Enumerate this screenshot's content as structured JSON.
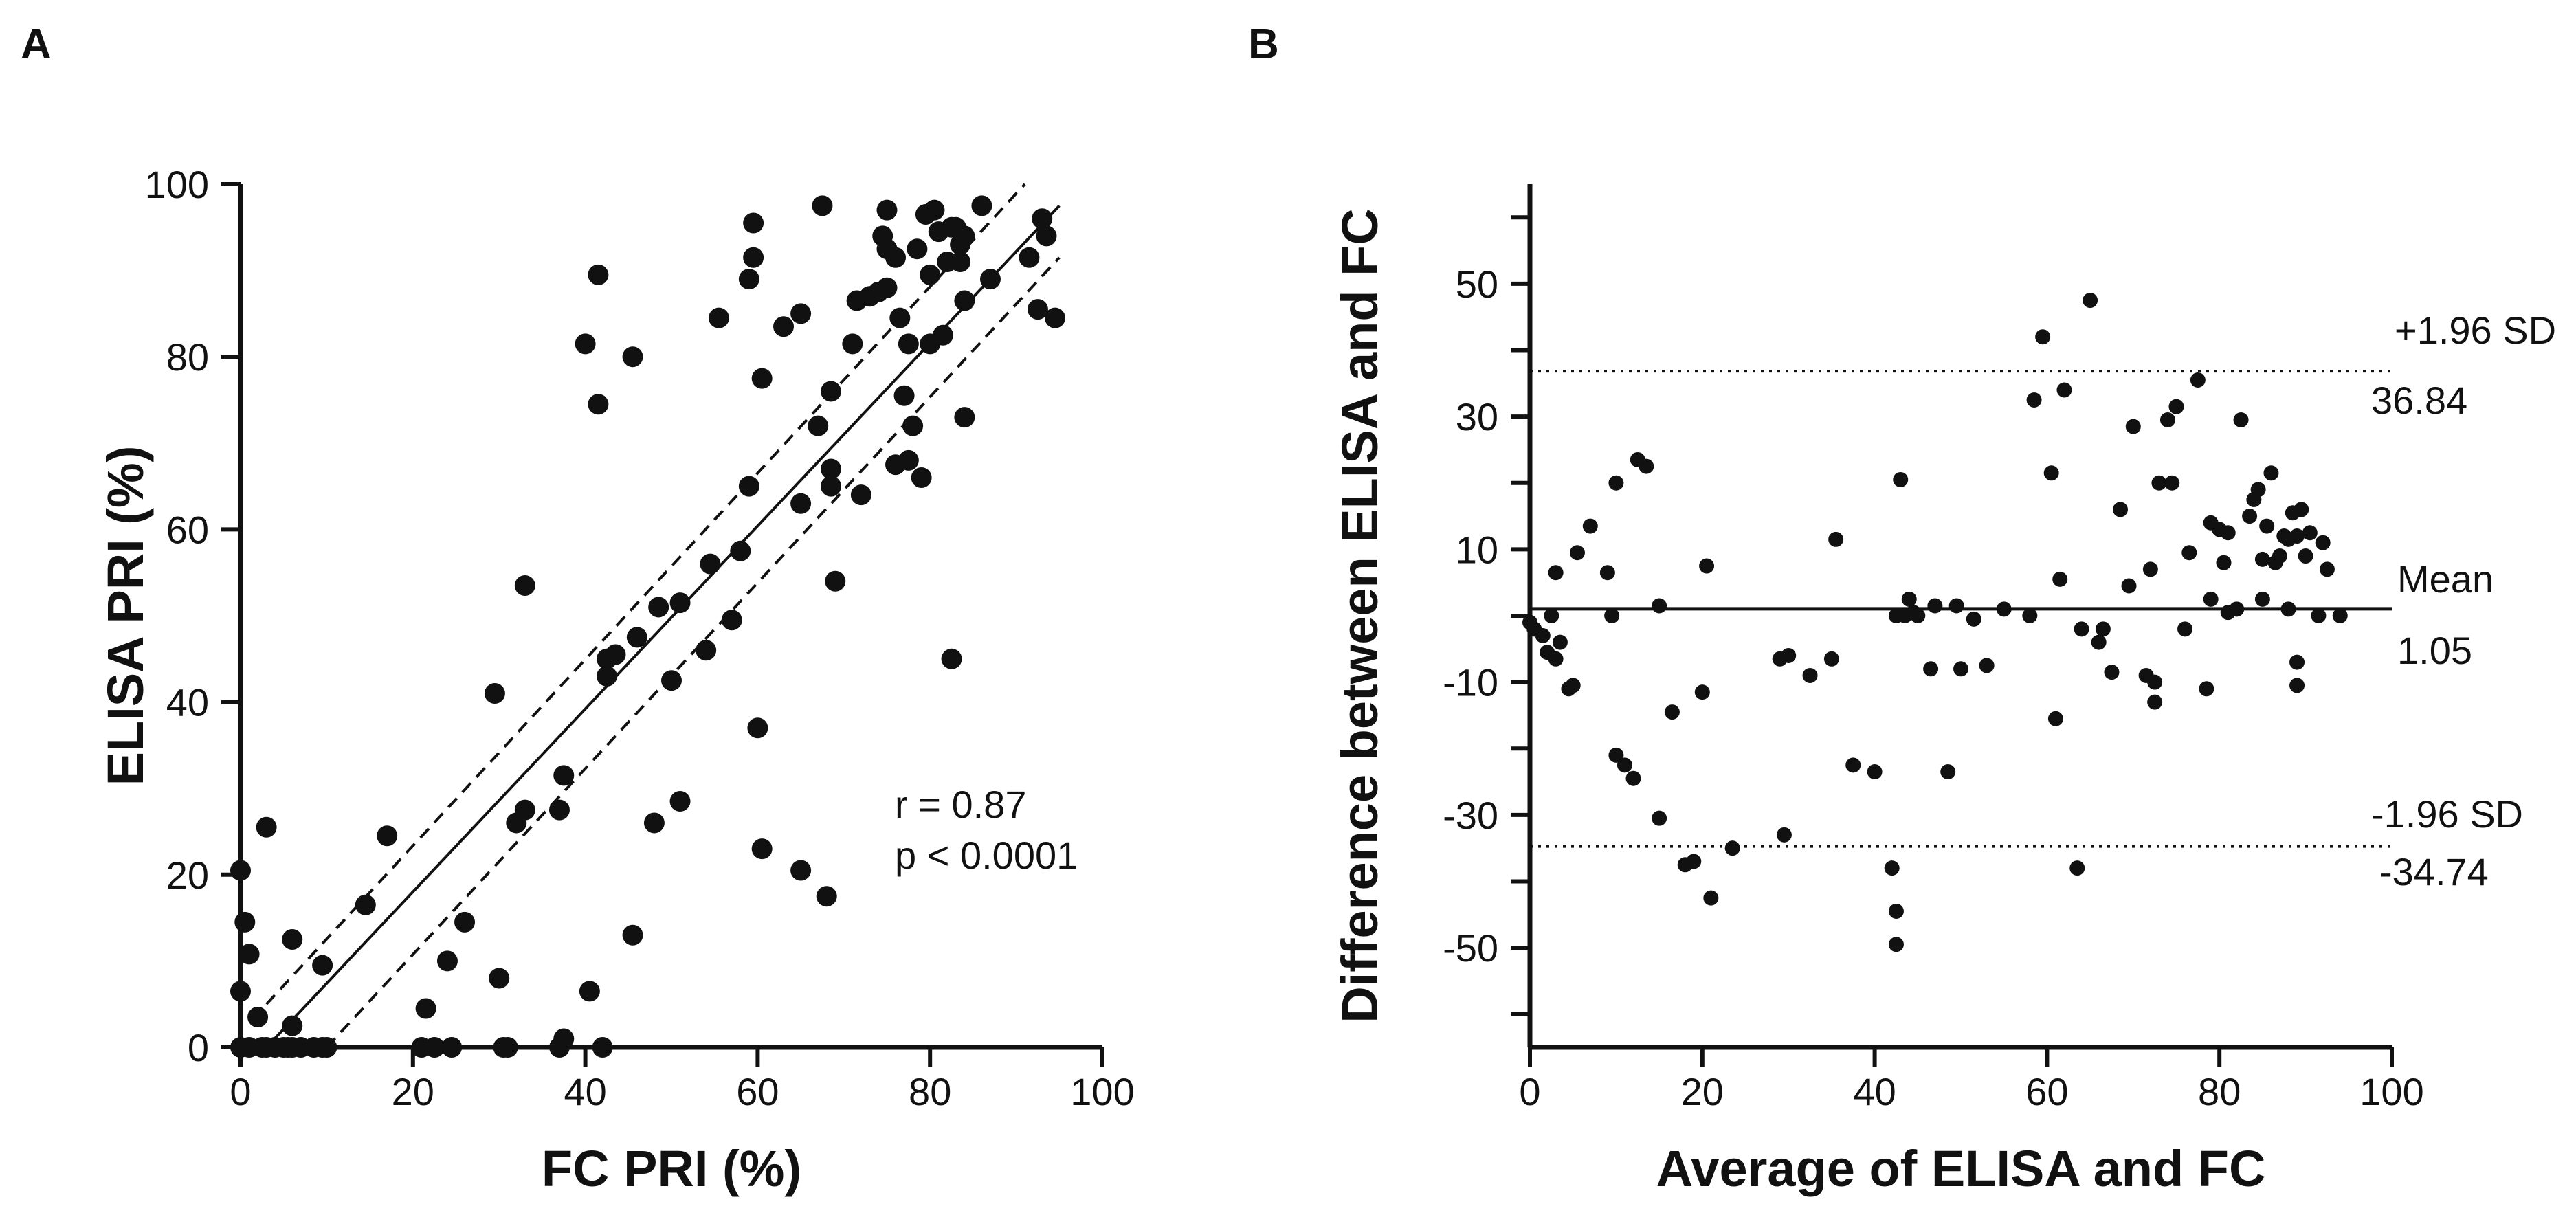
{
  "figure": {
    "panels": [
      "A",
      "B"
    ]
  },
  "chart_data": [
    {
      "panel": "A",
      "type": "scatter",
      "xlabel": "FC PRI (%)",
      "ylabel": "ELISA PRI (%)",
      "xlim": [
        0,
        100
      ],
      "ylim": [
        0,
        100
      ],
      "xticks": [
        0,
        20,
        40,
        60,
        80,
        100
      ],
      "yticks": [
        0,
        20,
        40,
        60,
        80,
        100
      ],
      "annotation": [
        "r = 0.87",
        "p < 0.0001"
      ],
      "marker_color": "#111111",
      "fit_line": {
        "x": [
          3,
          95
        ],
        "y": [
          0,
          97.5
        ],
        "style": "solid"
      },
      "ci_lines": [
        {
          "x": [
            3,
            91
          ],
          "y": [
            5,
            100
          ],
          "style": "dashed"
        },
        {
          "x": [
            10,
            95
          ],
          "y": [
            0,
            91.5
          ],
          "style": "dashed"
        }
      ],
      "points": [
        [
          0,
          20.5
        ],
        [
          0.5,
          14.5
        ],
        [
          1,
          10.8
        ],
        [
          0,
          6.5
        ],
        [
          0,
          0
        ],
        [
          1,
          0
        ],
        [
          2.5,
          0
        ],
        [
          3,
          0
        ],
        [
          4,
          0
        ],
        [
          5,
          0
        ],
        [
          5.5,
          0
        ],
        [
          6,
          0
        ],
        [
          7,
          0
        ],
        [
          8.5,
          0
        ],
        [
          9.5,
          0
        ],
        [
          10,
          0
        ],
        [
          2,
          3.5
        ],
        [
          3,
          25.5
        ],
        [
          6,
          2.5
        ],
        [
          6,
          12.5
        ],
        [
          9.5,
          9.5
        ],
        [
          14.5,
          16.5
        ],
        [
          17,
          24.5
        ],
        [
          21,
          0
        ],
        [
          21.5,
          4.5
        ],
        [
          22.5,
          0
        ],
        [
          24,
          10
        ],
        [
          24.5,
          0
        ],
        [
          26,
          14.5
        ],
        [
          30,
          8
        ],
        [
          30.5,
          0
        ],
        [
          31,
          0
        ],
        [
          29.5,
          41
        ],
        [
          32,
          26
        ],
        [
          33,
          27.5
        ],
        [
          33,
          53.5
        ],
        [
          37,
          0
        ],
        [
          37.5,
          1
        ],
        [
          37,
          27.5
        ],
        [
          37.5,
          31.5
        ],
        [
          40,
          81.5
        ],
        [
          40.5,
          6.5
        ],
        [
          41.5,
          89.5
        ],
        [
          41.5,
          74.5
        ],
        [
          42,
          0
        ],
        [
          42.5,
          43
        ],
        [
          42.5,
          45
        ],
        [
          43.5,
          45.5
        ],
        [
          45.5,
          13
        ],
        [
          45.5,
          80
        ],
        [
          46,
          47.5
        ],
        [
          48,
          26
        ],
        [
          48.5,
          51
        ],
        [
          50,
          42.5
        ],
        [
          51,
          28.5
        ],
        [
          51,
          51.5
        ],
        [
          54,
          46
        ],
        [
          54.5,
          56
        ],
        [
          55.5,
          84.5
        ],
        [
          57,
          49.5
        ],
        [
          58,
          57.5
        ],
        [
          59,
          65
        ],
        [
          59,
          89
        ],
        [
          59.5,
          91.5
        ],
        [
          59.5,
          95.5
        ],
        [
          60,
          37
        ],
        [
          60.5,
          77.5
        ],
        [
          60.5,
          23
        ],
        [
          63,
          83.5
        ],
        [
          65,
          20.5
        ],
        [
          65,
          63
        ],
        [
          65,
          85
        ],
        [
          67,
          72
        ],
        [
          67.5,
          97.5
        ],
        [
          68,
          17.5
        ],
        [
          68.5,
          65
        ],
        [
          68.5,
          67
        ],
        [
          68.5,
          76
        ],
        [
          69,
          54
        ],
        [
          71,
          81.5
        ],
        [
          71.5,
          86.5
        ],
        [
          72,
          64
        ],
        [
          73,
          87
        ],
        [
          74,
          87.5
        ],
        [
          74.5,
          94
        ],
        [
          75,
          97
        ],
        [
          75,
          92.5
        ],
        [
          75,
          88
        ],
        [
          76,
          67.5
        ],
        [
          76,
          91.5
        ],
        [
          76.5,
          84.5
        ],
        [
          77,
          75.5
        ],
        [
          77.5,
          68
        ],
        [
          77.5,
          81.5
        ],
        [
          78,
          72
        ],
        [
          78.5,
          92.5
        ],
        [
          79,
          66
        ],
        [
          79.5,
          96.5
        ],
        [
          80,
          81.5
        ],
        [
          80,
          89.5
        ],
        [
          80.5,
          97
        ],
        [
          81,
          94.5
        ],
        [
          81.5,
          82.5
        ],
        [
          82,
          91
        ],
        [
          82.5,
          95
        ],
        [
          82.5,
          45
        ],
        [
          83,
          95
        ],
        [
          83.5,
          91
        ],
        [
          83.5,
          93
        ],
        [
          84,
          94
        ],
        [
          84,
          73
        ],
        [
          84,
          86.5
        ],
        [
          86,
          97.5
        ],
        [
          87,
          89
        ],
        [
          91.5,
          91.5
        ],
        [
          92.5,
          85.5
        ],
        [
          93,
          96
        ],
        [
          93.5,
          94
        ],
        [
          94.5,
          84.5
        ]
      ]
    },
    {
      "panel": "B",
      "type": "scatter",
      "xlabel": "Average of ELISA and FC",
      "ylabel": "Difference between ELISA and FC",
      "xlim": [
        0,
        100
      ],
      "ylim": [
        -65,
        65
      ],
      "xticks": [
        0,
        20,
        40,
        60,
        80,
        100
      ],
      "yticks": [
        -50,
        -30,
        -10,
        10,
        30,
        50
      ],
      "mean": {
        "value": 1.05,
        "label": "Mean",
        "value_label": "1.05"
      },
      "upper_loa": {
        "value": 36.84,
        "label": "+1.96 SD",
        "value_label": "36.84"
      },
      "lower_loa": {
        "value": -34.74,
        "label": "-1.96 SD",
        "value_label": "-34.74"
      },
      "marker_color": "#111111",
      "points": [
        [
          0,
          -1
        ],
        [
          0.5,
          -2
        ],
        [
          1.5,
          -3
        ],
        [
          2,
          -5.5
        ],
        [
          2.5,
          0
        ],
        [
          3,
          -6.5
        ],
        [
          3,
          6.5
        ],
        [
          3.5,
          -4
        ],
        [
          4.5,
          -11
        ],
        [
          5,
          -10.5
        ],
        [
          5.5,
          9.5
        ],
        [
          7,
          13.5
        ],
        [
          9,
          6.5
        ],
        [
          9.5,
          0
        ],
        [
          10,
          20
        ],
        [
          10,
          -21
        ],
        [
          11,
          -22.5
        ],
        [
          12,
          -24.5
        ],
        [
          12.5,
          23.5
        ],
        [
          13.5,
          22.5
        ],
        [
          15,
          -30.5
        ],
        [
          15,
          1.5
        ],
        [
          16.5,
          -14.5
        ],
        [
          18,
          -37.5
        ],
        [
          19,
          -37
        ],
        [
          20,
          -11.5
        ],
        [
          20.5,
          7.5
        ],
        [
          21,
          -42.5
        ],
        [
          23.5,
          -35
        ],
        [
          29,
          -6.5
        ],
        [
          29.5,
          -33
        ],
        [
          30,
          -6
        ],
        [
          32.5,
          -9
        ],
        [
          35,
          -6.5
        ],
        [
          35.5,
          11.5
        ],
        [
          37.5,
          -22.5
        ],
        [
          40,
          -23.5
        ],
        [
          42,
          -38
        ],
        [
          42.5,
          -44.5
        ],
        [
          42.5,
          -49.5
        ],
        [
          42.5,
          0
        ],
        [
          43,
          20.5
        ],
        [
          43.5,
          0
        ],
        [
          44,
          2.5
        ],
        [
          44.5,
          0.5
        ],
        [
          45,
          0
        ],
        [
          46.5,
          -8
        ],
        [
          47,
          1.5
        ],
        [
          48.5,
          -23.5
        ],
        [
          49.5,
          1.5
        ],
        [
          50,
          -8
        ],
        [
          51.5,
          -0.5
        ],
        [
          53,
          -7.5
        ],
        [
          55,
          1
        ],
        [
          58,
          0
        ],
        [
          58.5,
          32.5
        ],
        [
          59.5,
          42
        ],
        [
          60.5,
          21.5
        ],
        [
          61,
          -15.5
        ],
        [
          61.5,
          5.5
        ],
        [
          62,
          34
        ],
        [
          63.5,
          -38
        ],
        [
          64,
          -2
        ],
        [
          65,
          47.5
        ],
        [
          66,
          -4
        ],
        [
          66.5,
          -2
        ],
        [
          67.5,
          -8.5
        ],
        [
          68.5,
          16
        ],
        [
          69.5,
          4.5
        ],
        [
          70,
          28.5
        ],
        [
          71.5,
          -9
        ],
        [
          72,
          7
        ],
        [
          72.5,
          -13
        ],
        [
          72.5,
          -10
        ],
        [
          73,
          20
        ],
        [
          74,
          29.5
        ],
        [
          74.5,
          20
        ],
        [
          75,
          31.5
        ],
        [
          76,
          -2
        ],
        [
          76.5,
          9.5
        ],
        [
          77.5,
          35.5
        ],
        [
          78.5,
          -11
        ],
        [
          79,
          14
        ],
        [
          79,
          2.5
        ],
        [
          80,
          13
        ],
        [
          80.5,
          8
        ],
        [
          81,
          12.5
        ],
        [
          81,
          0.5
        ],
        [
          82,
          1
        ],
        [
          82.5,
          29.5
        ],
        [
          83.5,
          15
        ],
        [
          84,
          17.5
        ],
        [
          84.5,
          19
        ],
        [
          85,
          8.5
        ],
        [
          85,
          2.5
        ],
        [
          85.5,
          13.5
        ],
        [
          86,
          21.5
        ],
        [
          86.5,
          8
        ],
        [
          87,
          9
        ],
        [
          87.5,
          12
        ],
        [
          88,
          1
        ],
        [
          88.5,
          15.5
        ],
        [
          88,
          11.5
        ],
        [
          89,
          12
        ],
        [
          89,
          -7
        ],
        [
          89,
          -10.5
        ],
        [
          89.5,
          16
        ],
        [
          90,
          9
        ],
        [
          90.5,
          12.5
        ],
        [
          91.5,
          0
        ],
        [
          92,
          11
        ],
        [
          92.5,
          7
        ],
        [
          94,
          0
        ]
      ]
    }
  ]
}
